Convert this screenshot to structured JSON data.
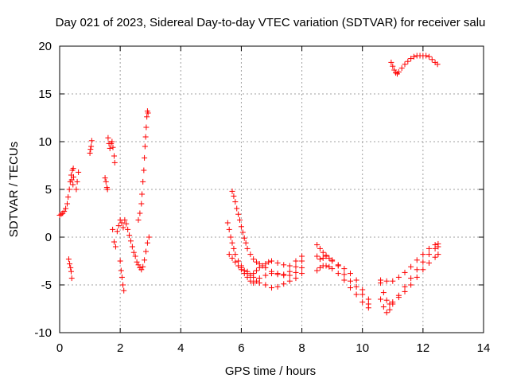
{
  "chart_data": {
    "type": "scatter",
    "title": "Day 021 of 2023, Sidereal Day-to-day VTEC variation (SDTVAR) for receiver salu",
    "xlabel": "GPS time / hours",
    "ylabel": "SDTVAR / TECUs",
    "xlim": [
      0,
      14
    ],
    "ylim": [
      -10,
      20
    ],
    "xticks": [
      0,
      2,
      4,
      6,
      8,
      10,
      12,
      14
    ],
    "yticks": [
      -10,
      -5,
      0,
      5,
      10,
      15,
      20
    ],
    "grid": true,
    "marker": "+",
    "color": "#ff0000",
    "series": [
      {
        "name": "SDTVAR",
        "points": [
          [
            0.0,
            2.3
          ],
          [
            0.05,
            2.4
          ],
          [
            0.1,
            2.5
          ],
          [
            0.15,
            2.7
          ],
          [
            0.2,
            3.0
          ],
          [
            0.25,
            3.5
          ],
          [
            0.28,
            4.2
          ],
          [
            0.32,
            5.0
          ],
          [
            0.35,
            5.8
          ],
          [
            0.38,
            6.5
          ],
          [
            0.42,
            7.0
          ],
          [
            0.45,
            7.2
          ],
          [
            0.4,
            6.0
          ],
          [
            0.44,
            5.5
          ],
          [
            0.46,
            6.3
          ],
          [
            0.3,
            -2.3
          ],
          [
            0.33,
            -2.8
          ],
          [
            0.36,
            -3.2
          ],
          [
            0.38,
            -3.6
          ],
          [
            0.4,
            -4.3
          ],
          [
            0.55,
            5.0
          ],
          [
            0.58,
            5.8
          ],
          [
            0.62,
            6.8
          ],
          [
            1.0,
            8.8
          ],
          [
            1.02,
            9.2
          ],
          [
            1.04,
            9.5
          ],
          [
            1.06,
            10.1
          ],
          [
            1.5,
            6.2
          ],
          [
            1.53,
            5.8
          ],
          [
            1.56,
            5.2
          ],
          [
            1.58,
            5.0
          ],
          [
            1.6,
            10.4
          ],
          [
            1.63,
            9.8
          ],
          [
            1.66,
            9.3
          ],
          [
            1.7,
            9.8
          ],
          [
            1.73,
            10.0
          ],
          [
            1.76,
            9.4
          ],
          [
            1.8,
            8.5
          ],
          [
            1.82,
            7.8
          ],
          [
            1.75,
            0.8
          ],
          [
            1.8,
            -0.5
          ],
          [
            1.85,
            -1.0
          ],
          [
            1.9,
            0.6
          ],
          [
            1.95,
            1.2
          ],
          [
            2.0,
            1.8
          ],
          [
            2.05,
            1.5
          ],
          [
            2.1,
            1.0
          ],
          [
            2.15,
            1.8
          ],
          [
            2.2,
            1.4
          ],
          [
            2.25,
            0.8
          ],
          [
            2.0,
            -2.5
          ],
          [
            2.03,
            -3.5
          ],
          [
            2.06,
            -4.2
          ],
          [
            2.09,
            -5.0
          ],
          [
            2.12,
            -5.6
          ],
          [
            2.3,
            0.2
          ],
          [
            2.35,
            -0.4
          ],
          [
            2.4,
            -1.0
          ],
          [
            2.45,
            -1.6
          ],
          [
            2.5,
            -2.0
          ],
          [
            2.55,
            -2.6
          ],
          [
            2.6,
            -2.9
          ],
          [
            2.65,
            -3.2
          ],
          [
            2.7,
            -3.4
          ],
          [
            2.75,
            -3.1
          ],
          [
            2.8,
            -2.4
          ],
          [
            2.85,
            -1.5
          ],
          [
            2.9,
            -0.6
          ],
          [
            2.95,
            0.0
          ],
          [
            2.6,
            1.8
          ],
          [
            2.65,
            2.5
          ],
          [
            2.7,
            3.5
          ],
          [
            2.72,
            4.5
          ],
          [
            2.75,
            5.8
          ],
          [
            2.78,
            7.0
          ],
          [
            2.8,
            8.3
          ],
          [
            2.82,
            9.5
          ],
          [
            2.84,
            10.5
          ],
          [
            2.86,
            11.5
          ],
          [
            2.88,
            12.6
          ],
          [
            2.9,
            13.2
          ],
          [
            2.92,
            13.0
          ],
          [
            5.55,
            1.5
          ],
          [
            5.6,
            0.8
          ],
          [
            5.65,
            0.0
          ],
          [
            5.7,
            -0.6
          ],
          [
            5.75,
            -1.2
          ],
          [
            5.8,
            -1.8
          ],
          [
            5.9,
            -2.5
          ],
          [
            6.0,
            -3.0
          ],
          [
            6.1,
            -3.5
          ],
          [
            6.2,
            -3.8
          ],
          [
            6.3,
            -4.0
          ],
          [
            6.4,
            -3.8
          ],
          [
            6.5,
            -3.5
          ],
          [
            6.6,
            -3.2
          ],
          [
            6.7,
            -3.0
          ],
          [
            6.8,
            -2.8
          ],
          [
            6.9,
            -2.6
          ],
          [
            7.0,
            -2.5
          ],
          [
            7.2,
            -2.7
          ],
          [
            7.4,
            -2.9
          ],
          [
            7.6,
            -3.0
          ],
          [
            7.8,
            -2.5
          ],
          [
            8.0,
            -2.0
          ],
          [
            5.6,
            -1.8
          ],
          [
            5.7,
            -2.2
          ],
          [
            5.8,
            -2.6
          ],
          [
            5.9,
            -3.0
          ],
          [
            6.0,
            -3.4
          ],
          [
            6.1,
            -3.8
          ],
          [
            6.2,
            -4.2
          ],
          [
            6.3,
            -4.6
          ],
          [
            6.4,
            -4.8
          ],
          [
            6.5,
            -4.6
          ],
          [
            6.6,
            -4.3
          ],
          [
            6.8,
            -4.0
          ],
          [
            7.0,
            -3.8
          ],
          [
            7.2,
            -3.9
          ],
          [
            7.4,
            -4.0
          ],
          [
            7.6,
            -3.6
          ],
          [
            7.8,
            -3.1
          ],
          [
            8.0,
            -2.5
          ],
          [
            5.7,
            4.8
          ],
          [
            5.75,
            4.3
          ],
          [
            5.8,
            3.7
          ],
          [
            5.85,
            3.0
          ],
          [
            5.9,
            2.4
          ],
          [
            5.95,
            1.8
          ],
          [
            6.0,
            1.1
          ],
          [
            6.05,
            0.5
          ],
          [
            6.1,
            -0.1
          ],
          [
            6.15,
            -0.6
          ],
          [
            6.2,
            -1.2
          ],
          [
            6.3,
            -1.8
          ],
          [
            6.4,
            -2.3
          ],
          [
            6.5,
            -2.6
          ],
          [
            6.6,
            -2.8
          ],
          [
            6.8,
            -3.2
          ],
          [
            7.0,
            -3.6
          ],
          [
            7.2,
            -3.8
          ],
          [
            7.4,
            -3.9
          ],
          [
            7.6,
            -4.0
          ],
          [
            7.8,
            -3.7
          ],
          [
            8.0,
            -3.2
          ],
          [
            6.0,
            -3.2
          ],
          [
            6.2,
            -3.6
          ],
          [
            6.4,
            -4.2
          ],
          [
            6.6,
            -4.8
          ],
          [
            6.8,
            -5.0
          ],
          [
            7.0,
            -5.3
          ],
          [
            7.2,
            -5.2
          ],
          [
            7.4,
            -4.9
          ],
          [
            7.6,
            -4.6
          ],
          [
            7.8,
            -4.3
          ],
          [
            8.0,
            -3.8
          ],
          [
            8.5,
            -0.8
          ],
          [
            8.6,
            -1.2
          ],
          [
            8.7,
            -1.6
          ],
          [
            8.8,
            -1.9
          ],
          [
            8.9,
            -2.2
          ],
          [
            9.0,
            -2.5
          ],
          [
            9.2,
            -2.9
          ],
          [
            9.4,
            -3.3
          ],
          [
            9.6,
            -3.8
          ],
          [
            9.8,
            -4.5
          ],
          [
            10.0,
            -5.5
          ],
          [
            10.2,
            -6.5
          ],
          [
            8.5,
            -3.5
          ],
          [
            8.6,
            -3.2
          ],
          [
            8.7,
            -3.0
          ],
          [
            8.8,
            -3.0
          ],
          [
            8.9,
            -3.1
          ],
          [
            9.0,
            -3.3
          ],
          [
            9.2,
            -3.8
          ],
          [
            9.4,
            -4.5
          ],
          [
            9.6,
            -5.3
          ],
          [
            9.8,
            -6.0
          ],
          [
            10.0,
            -6.8
          ],
          [
            10.2,
            -7.4
          ],
          [
            8.5,
            -2.0
          ],
          [
            8.6,
            -2.3
          ],
          [
            8.7,
            -2.2
          ],
          [
            8.8,
            -2.0
          ],
          [
            9.0,
            -2.4
          ],
          [
            9.2,
            -3.0
          ],
          [
            9.4,
            -3.9
          ],
          [
            9.6,
            -4.6
          ],
          [
            9.8,
            -5.2
          ],
          [
            10.0,
            -6.0
          ],
          [
            10.2,
            -7.0
          ],
          [
            10.6,
            -4.8
          ],
          [
            10.7,
            -5.8
          ],
          [
            10.8,
            -6.6
          ],
          [
            10.9,
            -7.0
          ],
          [
            11.0,
            -6.8
          ],
          [
            11.2,
            -6.3
          ],
          [
            11.4,
            -5.7
          ],
          [
            11.6,
            -5.0
          ],
          [
            11.8,
            -4.2
          ],
          [
            12.0,
            -3.4
          ],
          [
            12.2,
            -2.7
          ],
          [
            12.4,
            -2.1
          ],
          [
            12.5,
            -1.8
          ],
          [
            10.6,
            -6.5
          ],
          [
            10.7,
            -7.3
          ],
          [
            10.8,
            -7.9
          ],
          [
            10.9,
            -7.6
          ],
          [
            11.0,
            -7.0
          ],
          [
            11.2,
            -6.1
          ],
          [
            11.4,
            -5.2
          ],
          [
            11.6,
            -4.3
          ],
          [
            11.8,
            -3.4
          ],
          [
            12.0,
            -2.6
          ],
          [
            12.2,
            -1.8
          ],
          [
            12.4,
            -1.2
          ],
          [
            12.5,
            -1.0
          ],
          [
            10.6,
            -4.5
          ],
          [
            10.8,
            -4.6
          ],
          [
            11.0,
            -4.6
          ],
          [
            11.2,
            -4.2
          ],
          [
            11.4,
            -3.7
          ],
          [
            11.6,
            -3.1
          ],
          [
            11.8,
            -2.4
          ],
          [
            12.0,
            -1.8
          ],
          [
            12.2,
            -1.2
          ],
          [
            12.4,
            -0.8
          ],
          [
            12.5,
            -0.7
          ],
          [
            10.95,
            18.3
          ],
          [
            11.0,
            17.9
          ],
          [
            11.05,
            17.5
          ],
          [
            11.1,
            17.2
          ],
          [
            11.15,
            17.1
          ],
          [
            11.2,
            17.3
          ],
          [
            11.3,
            17.7
          ],
          [
            11.4,
            18.1
          ],
          [
            11.5,
            18.4
          ],
          [
            11.6,
            18.7
          ],
          [
            11.7,
            18.9
          ],
          [
            11.8,
            19.0
          ],
          [
            11.9,
            19.0
          ],
          [
            12.0,
            19.0
          ],
          [
            12.1,
            19.0
          ],
          [
            12.2,
            18.9
          ],
          [
            12.3,
            18.6
          ],
          [
            12.4,
            18.3
          ],
          [
            12.48,
            18.1
          ]
        ]
      }
    ]
  }
}
